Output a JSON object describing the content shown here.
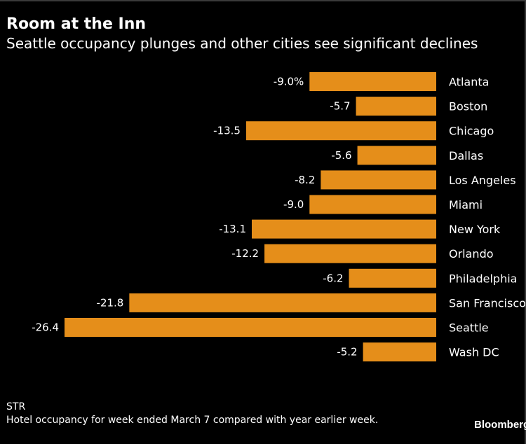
{
  "chart_data": {
    "type": "bar",
    "orientation": "horizontal",
    "title": "Room at the Inn",
    "subtitle": "Seattle occupancy plunges and other cities see significant declines",
    "categories": [
      "Atlanta",
      "Boston",
      "Chicago",
      "Dallas",
      "Los Angeles",
      "Miami",
      "New York",
      "Orlando",
      "Philadelphia",
      "San Francisco",
      "Seattle",
      "Wash DC"
    ],
    "values": [
      -9.0,
      -5.7,
      -13.5,
      -5.6,
      -8.2,
      -9.0,
      -13.1,
      -12.2,
      -6.2,
      -21.8,
      -26.4,
      -5.2
    ],
    "value_labels": [
      "-9.0%",
      "-5.7",
      "-13.5",
      "-5.6",
      "-8.2",
      "-9.0",
      "-13.1",
      "-12.2",
      "-6.2",
      "-21.8",
      "-26.4",
      "-5.2"
    ],
    "xlim": [
      -26.4,
      0
    ],
    "bar_color": "#E58E1A",
    "grid": false
  },
  "footer": {
    "source": "STR",
    "note": "Hotel occupancy for week ended March 7 compared with year earlier week.",
    "brand": "Bloomberg"
  }
}
